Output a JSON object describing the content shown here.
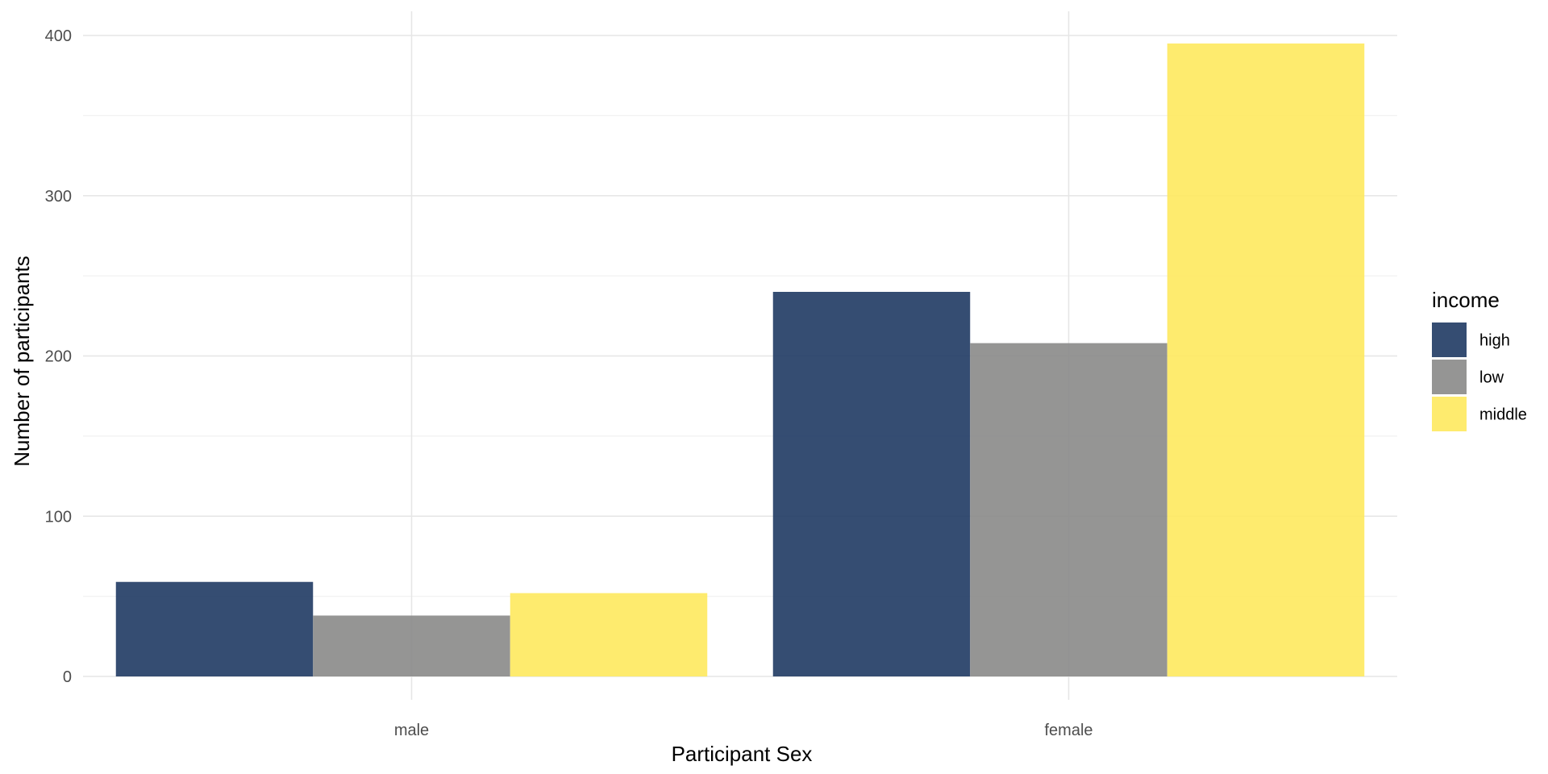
{
  "chart_data": {
    "type": "bar",
    "title": "",
    "xlabel": "Participant Sex",
    "ylabel": "Number of participants",
    "categories": [
      "male",
      "female"
    ],
    "series": [
      {
        "name": "high",
        "values": [
          59,
          240
        ],
        "color": "#1f3a63"
      },
      {
        "name": "low",
        "values": [
          38,
          208
        ],
        "color": "#8a8988"
      },
      {
        "name": "middle",
        "values": [
          52,
          395
        ],
        "color": "#fee95e"
      }
    ],
    "ylim": [
      -4,
      414
    ],
    "yticks": [
      0,
      100,
      200,
      300,
      400
    ],
    "grid": true,
    "legend": {
      "title": "income",
      "position": "right"
    }
  }
}
